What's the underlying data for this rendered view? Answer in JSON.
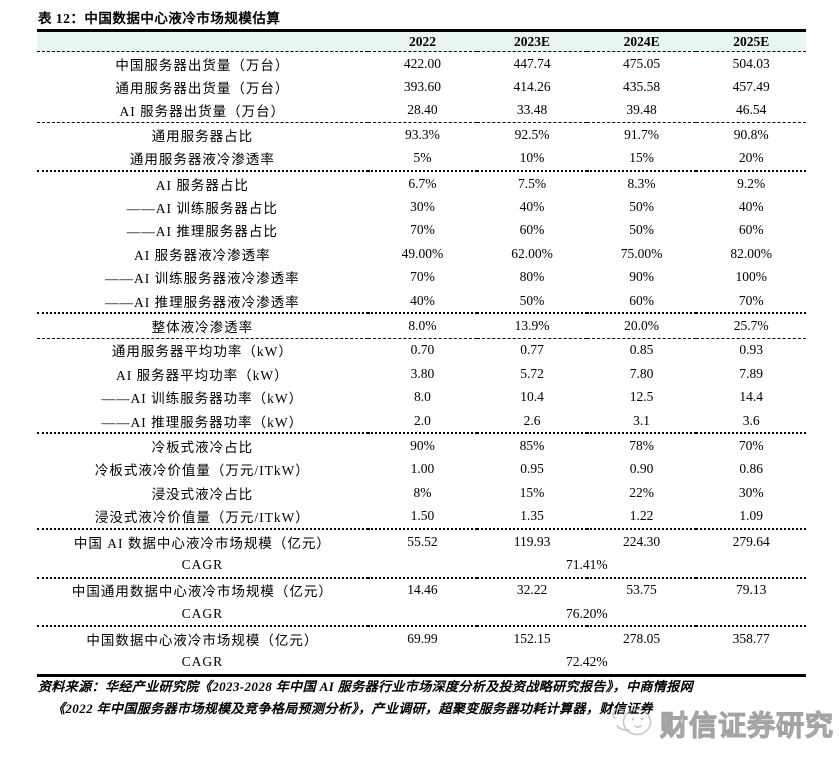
{
  "title": "表 12：中国数据中心液冷市场规模估算",
  "colors": {
    "header_bg": "#e9f5f3",
    "rule_color": "#000000",
    "watermark_gray": "#a3a3a3"
  },
  "table": {
    "columns": [
      "",
      "2022",
      "2023E",
      "2024E",
      "2025E"
    ],
    "sections": [
      {
        "rows": [
          {
            "label": "中国服务器出货量（万台）",
            "values": [
              "422.00",
              "447.74",
              "475.05",
              "504.03"
            ]
          },
          {
            "label": "通用服务器出货量（万台）",
            "values": [
              "393.60",
              "414.26",
              "435.58",
              "457.49"
            ]
          },
          {
            "label": "AI 服务器出货量（万台）",
            "values": [
              "28.40",
              "33.48",
              "39.48",
              "46.54"
            ]
          }
        ]
      },
      {
        "rows": [
          {
            "label": "通用服务器占比",
            "values": [
              "93.3%",
              "92.5%",
              "91.7%",
              "90.8%"
            ]
          },
          {
            "label": "通用服务器液冷渗透率",
            "values": [
              "5%",
              "10%",
              "15%",
              "20%"
            ]
          }
        ]
      },
      {
        "rows": [
          {
            "label": "AI 服务器占比",
            "values": [
              "6.7%",
              "7.5%",
              "8.3%",
              "9.2%"
            ]
          },
          {
            "label": "——AI 训练服务器占比",
            "values": [
              "30%",
              "40%",
              "50%",
              "40%"
            ]
          },
          {
            "label": "——AI 推理服务器占比",
            "values": [
              "70%",
              "60%",
              "50%",
              "60%"
            ]
          },
          {
            "label": "AI 服务器液冷渗透率",
            "values": [
              "49.00%",
              "62.00%",
              "75.00%",
              "82.00%"
            ]
          },
          {
            "label": "——AI 训练服务器液冷渗透率",
            "values": [
              "70%",
              "80%",
              "90%",
              "100%"
            ]
          },
          {
            "label": "——AI 推理服务器液冷渗透率",
            "values": [
              "40%",
              "50%",
              "60%",
              "70%"
            ]
          }
        ]
      },
      {
        "rows": [
          {
            "label": "整体液冷渗透率",
            "values": [
              "8.0%",
              "13.9%",
              "20.0%",
              "25.7%"
            ]
          }
        ]
      },
      {
        "rows": [
          {
            "label": "通用服务器平均功率（kW）",
            "values": [
              "0.70",
              "0.77",
              "0.85",
              "0.93"
            ]
          },
          {
            "label": "AI 服务器平均功率（kW）",
            "values": [
              "3.80",
              "5.72",
              "7.80",
              "7.89"
            ]
          },
          {
            "label": "——AI 训练服务器功率（kW）",
            "values": [
              "8.0",
              "10.4",
              "12.5",
              "14.4"
            ]
          },
          {
            "label": "——AI 推理服务器功率（kW）",
            "values": [
              "2.0",
              "2.6",
              "3.1",
              "3.6"
            ]
          }
        ]
      },
      {
        "rows": [
          {
            "label": "冷板式液冷占比",
            "values": [
              "90%",
              "85%",
              "78%",
              "70%"
            ]
          },
          {
            "label": "冷板式液冷价值量（万元/ITkW）",
            "values": [
              "1.00",
              "0.95",
              "0.90",
              "0.86"
            ]
          },
          {
            "label": "浸没式液冷占比",
            "values": [
              "8%",
              "15%",
              "22%",
              "30%"
            ]
          },
          {
            "label": "浸没式液冷价值量（万元/ITkW）",
            "values": [
              "1.50",
              "1.35",
              "1.22",
              "1.09"
            ]
          }
        ]
      },
      {
        "rows": [
          {
            "label": "中国 AI 数据中心液冷市场规模（亿元）",
            "values": [
              "55.52",
              "119.93",
              "224.30",
              "279.64"
            ]
          },
          {
            "label": "CAGR",
            "span_value": "71.41%"
          }
        ]
      },
      {
        "rows": [
          {
            "label": "中国通用数据中心液冷市场规模（亿元）",
            "values": [
              "14.46",
              "32.22",
              "53.75",
              "79.13"
            ]
          },
          {
            "label": "CAGR",
            "span_value": "76.20%"
          }
        ]
      },
      {
        "rows": [
          {
            "label": "中国数据中心液冷市场规模（亿元）",
            "values": [
              "69.99",
              "152.15",
              "278.05",
              "358.77"
            ]
          },
          {
            "label": "CAGR",
            "span_value": "72.42%"
          }
        ]
      }
    ]
  },
  "source": {
    "line1": "资料来源：华经产业研究院《2023-2028 年中国 AI 服务器行业市场深度分析及投资战略研究报告》，中商情报网",
    "line2": "《2022 年中国服务器市场规模及竞争格局预测分析》，产业调研，超聚变服务器功耗计算器，财信证券"
  },
  "watermark": {
    "text": "财信证券研究"
  }
}
